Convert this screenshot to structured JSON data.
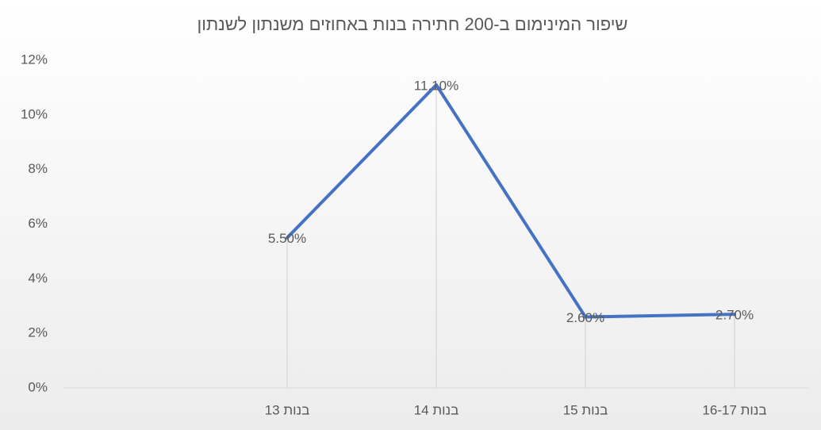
{
  "chart_data": {
    "type": "line",
    "title": "שיפור המינימום ב-200 חתירה בנות באחוזים משנתון לשנתון",
    "categories": [
      null,
      "בנות 13",
      "בנות 14",
      "בנות 15",
      "בנות 16-17"
    ],
    "values": [
      null,
      5.5,
      11.1,
      2.6,
      2.7
    ],
    "value_labels": [
      null,
      "5.50%",
      "11.10%",
      "2.60%",
      "2.70%"
    ],
    "color": "#4472c4",
    "ylim": [
      0,
      12
    ],
    "yticks": [
      {
        "value": 0,
        "label": "0%"
      },
      {
        "value": 2,
        "label": "2%"
      },
      {
        "value": 4,
        "label": "4%"
      },
      {
        "value": 6,
        "label": "6%"
      },
      {
        "value": 8,
        "label": "8%"
      },
      {
        "value": 10,
        "label": "10%"
      },
      {
        "value": 12,
        "label": "12%"
      }
    ],
    "drop_lines": true
  }
}
